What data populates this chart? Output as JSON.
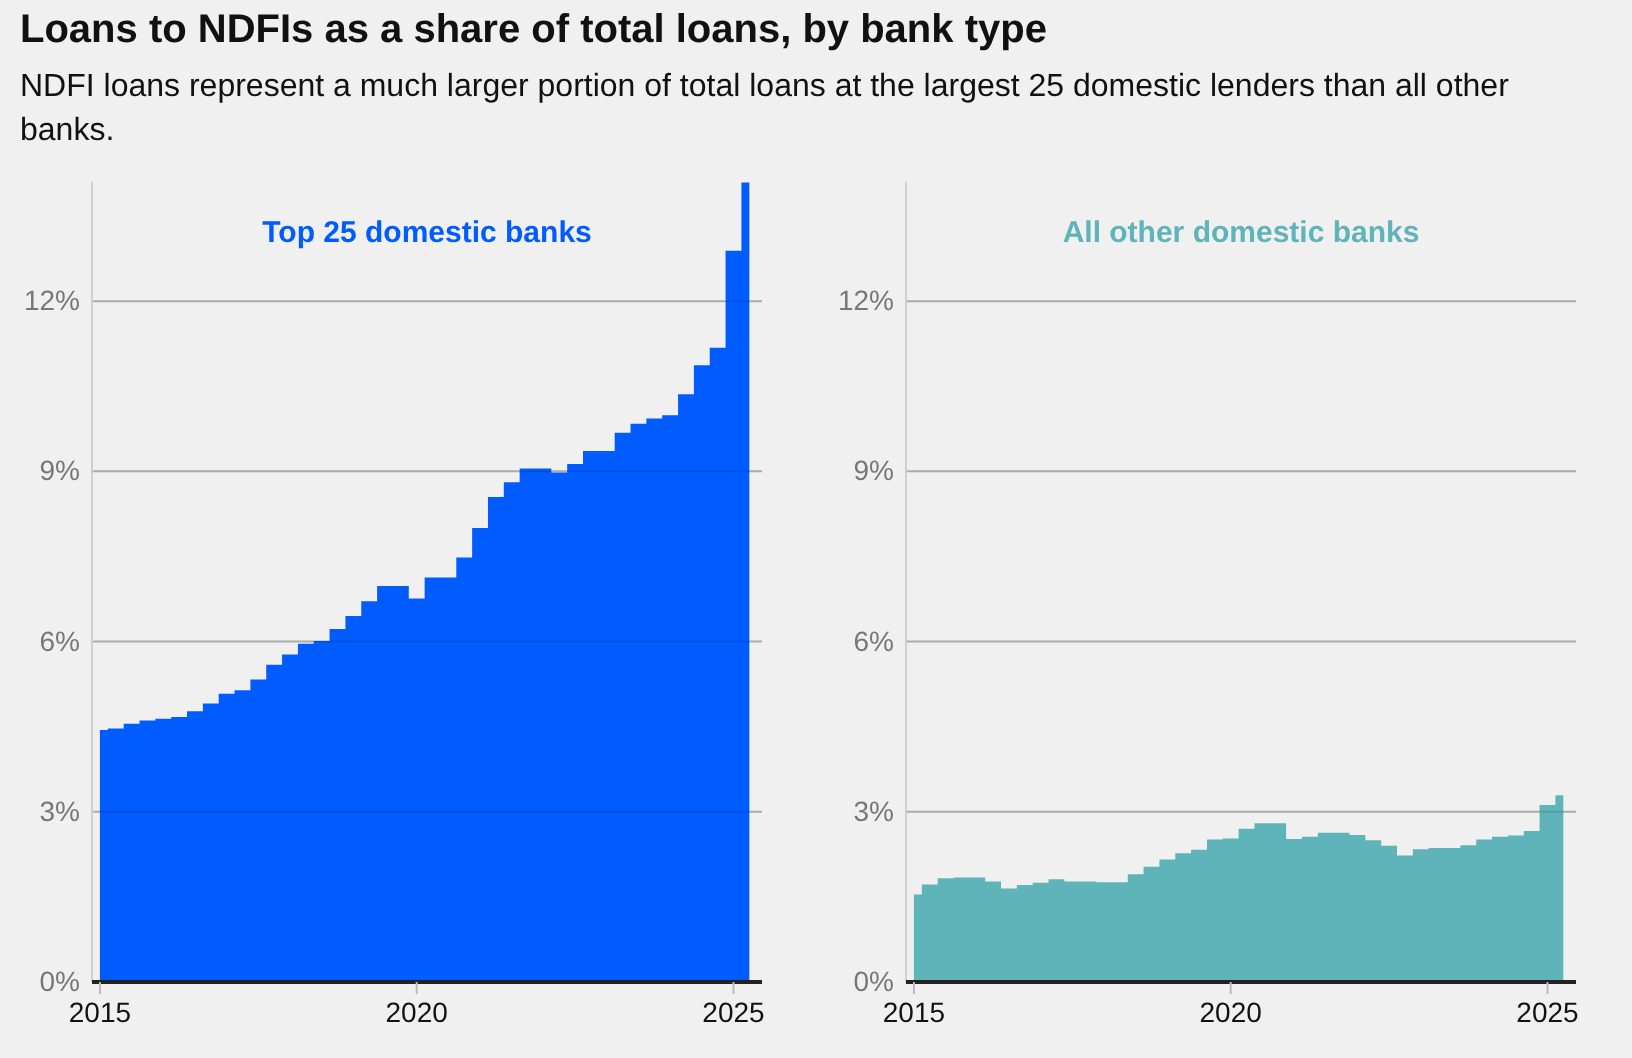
{
  "chart_data": [
    {
      "type": "area",
      "title": "Loans to NDFIs as a share of total loans, by bank type",
      "subtitle": "NDFI loans represent a much larger portion of total loans at the largest 25 domestic lenders than all other banks.",
      "x": [
        2015,
        2015.25,
        2015.5,
        2015.75,
        2016,
        2016.25,
        2016.5,
        2016.75,
        2017,
        2017.25,
        2017.5,
        2017.75,
        2018,
        2018.25,
        2018.5,
        2018.75,
        2019,
        2019.25,
        2019.5,
        2019.75,
        2020,
        2020.25,
        2020.5,
        2020.75,
        2021,
        2021.25,
        2021.5,
        2021.75,
        2022,
        2022.25,
        2022.5,
        2022.75,
        2023,
        2023.25,
        2023.5,
        2023.75,
        2024,
        2024.25,
        2024.5,
        2024.75,
        2025,
        2025.25
      ],
      "series": [
        {
          "name": "Top 25 domestic banks",
          "color": "#005cff",
          "values": [
            4.44,
            4.47,
            4.55,
            4.61,
            4.64,
            4.67,
            4.77,
            4.91,
            5.08,
            5.14,
            5.33,
            5.59,
            5.77,
            5.96,
            6.01,
            6.22,
            6.45,
            6.71,
            6.98,
            6.98,
            6.76,
            7.13,
            7.13,
            7.48,
            8.0,
            8.55,
            8.81,
            9.05,
            9.05,
            8.98,
            9.13,
            9.36,
            9.36,
            9.68,
            9.84,
            9.93,
            9.99,
            10.36,
            10.87,
            11.18,
            12.89,
            14.09
          ]
        }
      ],
      "xlim": [
        2014.875,
        2025.45
      ],
      "xticks": [
        2015,
        2020,
        2025
      ],
      "ylim": [
        0,
        14.1
      ],
      "yticks": [
        {
          "value": 0,
          "label": "0%"
        },
        {
          "value": 3,
          "label": "3%"
        },
        {
          "value": 6,
          "label": "6%"
        },
        {
          "value": 9,
          "label": "9%"
        },
        {
          "value": 12,
          "label": "12%"
        }
      ],
      "grid": "y"
    },
    {
      "type": "area",
      "x": [
        2015,
        2015.25,
        2015.5,
        2015.75,
        2016,
        2016.25,
        2016.5,
        2016.75,
        2017,
        2017.25,
        2017.5,
        2017.75,
        2018,
        2018.25,
        2018.5,
        2018.75,
        2019,
        2019.25,
        2019.5,
        2019.75,
        2020,
        2020.25,
        2020.5,
        2020.75,
        2021,
        2021.25,
        2021.5,
        2021.75,
        2022,
        2022.25,
        2022.5,
        2022.75,
        2023,
        2023.25,
        2023.5,
        2023.75,
        2024,
        2024.25,
        2024.5,
        2024.75,
        2025,
        2025.25
      ],
      "series": [
        {
          "name": "All other domestic banks",
          "color": "#5fb4ba",
          "values": [
            1.54,
            1.72,
            1.83,
            1.84,
            1.84,
            1.77,
            1.65,
            1.71,
            1.75,
            1.81,
            1.77,
            1.77,
            1.76,
            1.76,
            1.9,
            2.03,
            2.16,
            2.27,
            2.33,
            2.51,
            2.53,
            2.7,
            2.8,
            2.8,
            2.52,
            2.56,
            2.63,
            2.63,
            2.59,
            2.5,
            2.4,
            2.23,
            2.34,
            2.36,
            2.36,
            2.41,
            2.51,
            2.56,
            2.58,
            2.66,
            3.12,
            3.29
          ]
        }
      ],
      "xlim": [
        2014.875,
        2025.45
      ],
      "xticks": [
        2015,
        2020,
        2025
      ],
      "ylim": [
        0,
        14.1
      ],
      "yticks": [
        {
          "value": 0,
          "label": "0%"
        },
        {
          "value": 3,
          "label": "3%"
        },
        {
          "value": 6,
          "label": "6%"
        },
        {
          "value": 9,
          "label": "9%"
        },
        {
          "value": 12,
          "label": "12%"
        }
      ],
      "grid": "y"
    }
  ]
}
